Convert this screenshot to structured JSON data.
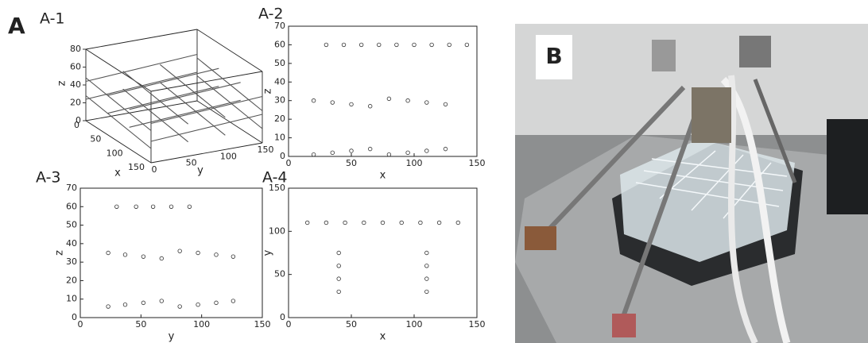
{
  "figure": {
    "panel_a": "A",
    "panel_b": "B"
  },
  "chart_data": [
    {
      "type": "box3d",
      "title": "A-1",
      "xlabel": "x",
      "ylabel": "y",
      "zlabel": "z",
      "xlim": [
        0,
        150
      ],
      "ylim": [
        0,
        150
      ],
      "zlim": [
        0,
        80
      ],
      "xticks": [
        0,
        50,
        100,
        150
      ],
      "yticks": [
        0,
        50,
        100,
        150
      ],
      "zticks": [
        0,
        20,
        40,
        60,
        80
      ],
      "color": "#333333"
    },
    {
      "type": "scatter",
      "title": "A-2",
      "xlabel": "x",
      "ylabel": "z",
      "xlim": [
        0,
        150
      ],
      "ylim": [
        0,
        70
      ],
      "xticks": [
        0,
        50,
        100,
        150
      ],
      "yticks": [
        0,
        10,
        20,
        30,
        40,
        50,
        60,
        70
      ],
      "series": [
        {
          "color": "#333333",
          "x": [
            30,
            44,
            58,
            72,
            86,
            100,
            114,
            128,
            142
          ],
          "values": [
            60,
            60,
            60,
            60,
            60,
            60,
            60,
            60,
            60
          ]
        },
        {
          "color": "#333333",
          "x": [
            20,
            35,
            50,
            65,
            80,
            95,
            110,
            125
          ],
          "values": [
            30,
            29,
            28,
            27,
            31,
            30,
            29,
            28
          ]
        },
        {
          "color": "#333333",
          "x": [
            20,
            35,
            50,
            65,
            80,
            95,
            110,
            125
          ],
          "values": [
            1,
            2,
            3,
            4,
            1,
            2,
            3,
            4
          ]
        }
      ]
    },
    {
      "type": "scatter",
      "title": "A-3",
      "xlabel": "y",
      "ylabel": "z",
      "xlim": [
        0,
        150
      ],
      "ylim": [
        0,
        70
      ],
      "xticks": [
        0,
        50,
        100,
        150
      ],
      "yticks": [
        0,
        10,
        20,
        30,
        40,
        50,
        60,
        70
      ],
      "series": [
        {
          "color": "#333333",
          "x": [
            30,
            46,
            60,
            75,
            90
          ],
          "values": [
            60,
            60,
            60,
            60,
            60
          ]
        },
        {
          "color": "#333333",
          "x": [
            23,
            37,
            52,
            67,
            82,
            97,
            112,
            126
          ],
          "values": [
            35,
            34,
            33,
            32,
            36,
            35,
            34,
            33
          ]
        },
        {
          "color": "#333333",
          "x": [
            23,
            37,
            52,
            67,
            82,
            97,
            112,
            126
          ],
          "values": [
            6,
            7,
            8,
            9,
            6,
            7,
            8,
            9
          ]
        }
      ]
    },
    {
      "type": "scatter",
      "title": "A-4",
      "xlabel": "x",
      "ylabel": "y",
      "xlim": [
        0,
        150
      ],
      "ylim": [
        0,
        150
      ],
      "xticks": [
        0,
        50,
        100,
        150
      ],
      "yticks": [
        0,
        50,
        100,
        150
      ],
      "series": [
        {
          "color": "#333333",
          "x": [
            15,
            30,
            45,
            60,
            75,
            90,
            105,
            120,
            135
          ],
          "values": [
            110,
            110,
            110,
            110,
            110,
            110,
            110,
            110,
            110
          ]
        },
        {
          "color": "#333333",
          "x": [
            40,
            40,
            40,
            40
          ],
          "values": [
            75,
            60,
            45,
            30
          ]
        },
        {
          "color": "#333333",
          "x": [
            110,
            110,
            110,
            110
          ],
          "values": [
            75,
            60,
            45,
            30
          ]
        }
      ]
    }
  ]
}
